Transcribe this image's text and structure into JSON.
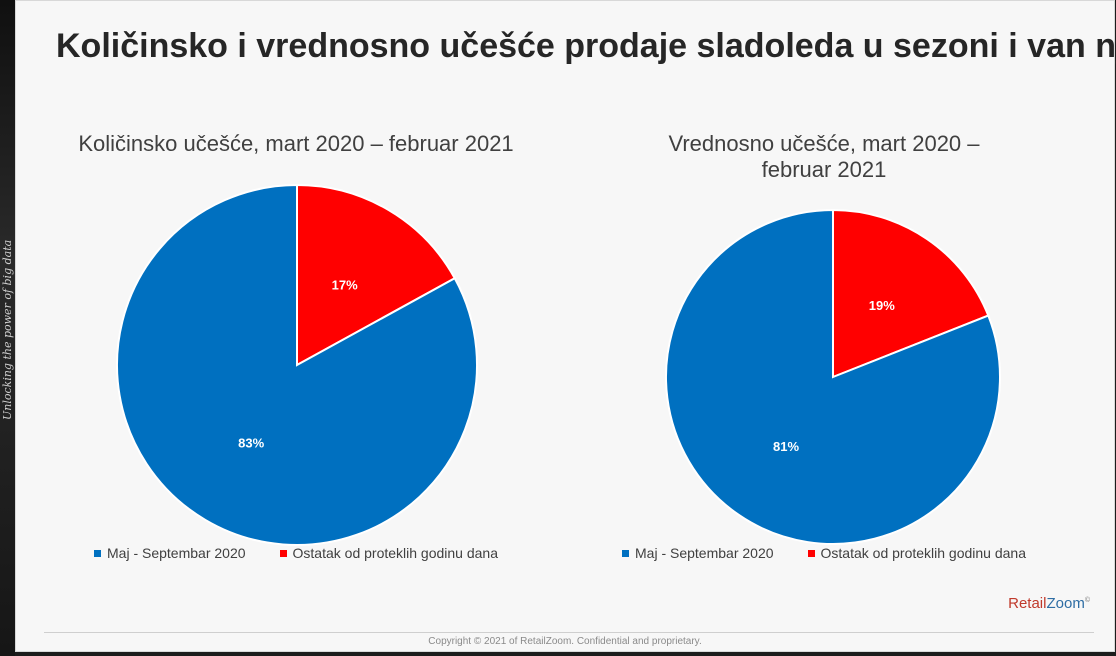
{
  "side_banner": {
    "text": "Unlocking the power of big data"
  },
  "slide": {
    "title": "Količinsko i vrednosno učešće prodaje sladoleda u sezoni i van nje"
  },
  "colors": {
    "season": "#0070C0",
    "rest": "#FF0000"
  },
  "chart_data": [
    {
      "type": "pie",
      "title": "Količinsko učešće, mart 2020 – februar 2021",
      "series": [
        {
          "name": "Maj - Septembar 2020",
          "value": 83,
          "label": "83%",
          "color": "#0070C0"
        },
        {
          "name": "Ostatak od proteklih godinu dana",
          "value": 17,
          "label": "17%",
          "color": "#FF0000"
        }
      ],
      "legend": "bottom"
    },
    {
      "type": "pie",
      "title": "Vrednosno učešće, mart 2020 – februar 2021",
      "series": [
        {
          "name": "Maj - Septembar 2020",
          "value": 81,
          "label": "81%",
          "color": "#0070C0"
        },
        {
          "name": "Ostatak od proteklih godinu dana",
          "value": 19,
          "label": "19%",
          "color": "#FF0000"
        }
      ],
      "legend": "bottom"
    }
  ],
  "brand": {
    "retail": "Retail",
    "zoom": "Zoom",
    "mark": "©"
  },
  "footer": {
    "copyright": "Copyright © 2021 of RetailZoom. Confidential and proprietary."
  }
}
